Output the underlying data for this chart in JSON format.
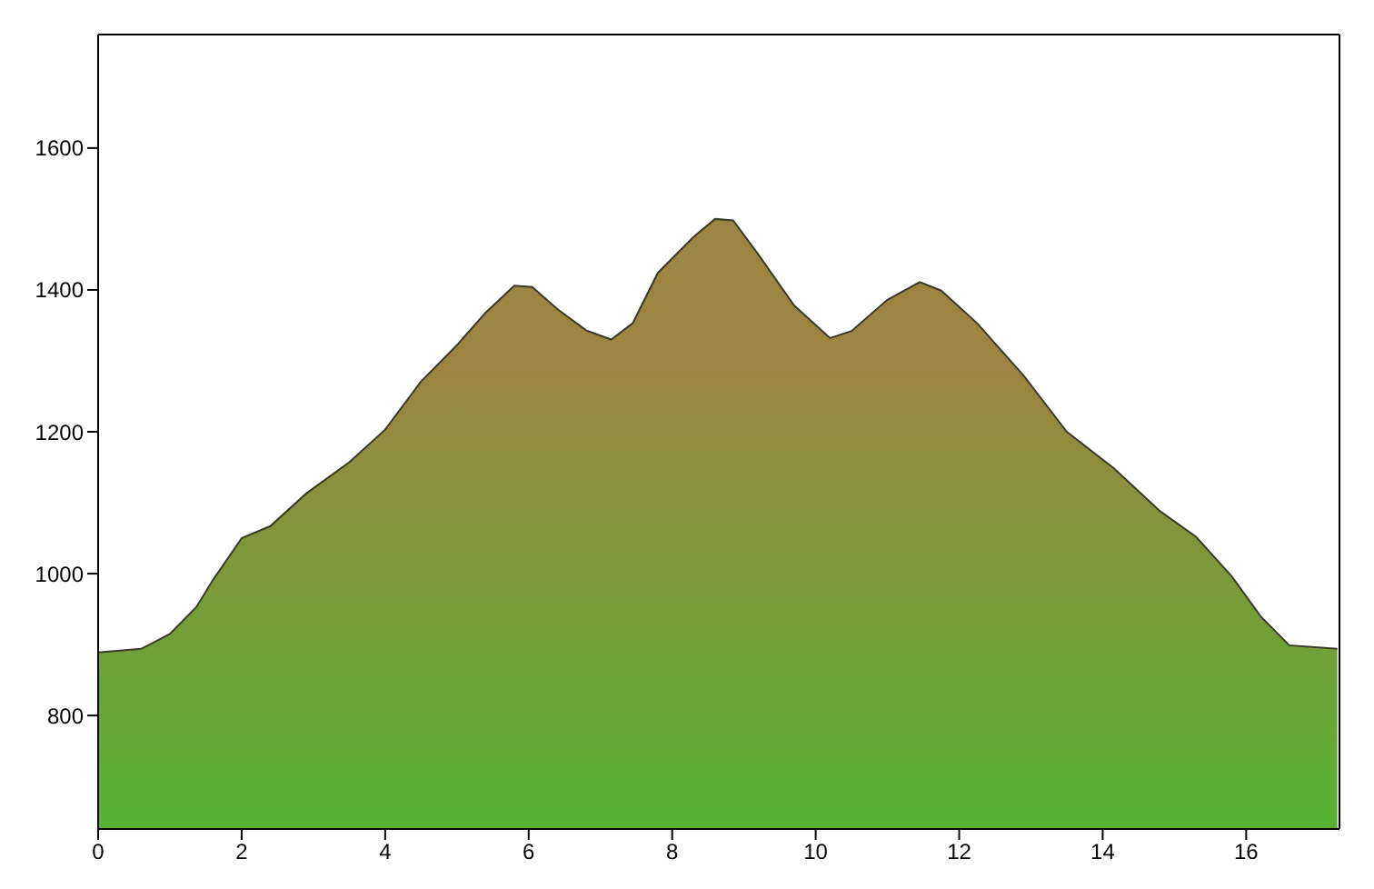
{
  "chart_data": {
    "type": "area",
    "x": [
      0,
      0.6,
      1.0,
      1.37,
      1.6,
      2.0,
      2.4,
      2.9,
      3.5,
      4.0,
      4.5,
      5.0,
      5.4,
      5.8,
      6.05,
      6.4,
      6.8,
      7.15,
      7.45,
      7.8,
      8.3,
      8.6,
      8.85,
      9.2,
      9.7,
      10.2,
      10.5,
      11.0,
      11.45,
      11.75,
      12.25,
      12.9,
      13.5,
      14.15,
      14.8,
      15.3,
      15.8,
      16.2,
      16.6,
      17.27
    ],
    "series": [
      {
        "color": "#56b233",
        "values": [
          889,
          894,
          915,
          953,
          991,
          1050,
          1067,
          1113,
          1157,
          1203,
          1271,
          1322,
          1368,
          1406,
          1404,
          1373,
          1343,
          1330,
          1353,
          1424,
          1475,
          1500,
          1498,
          1450,
          1378,
          1332,
          1342,
          1386,
          1411,
          1399,
          1353,
          1279,
          1200,
          1149,
          1088,
          1052,
          996,
          940,
          899,
          894
        ]
      }
    ],
    "xlim": [
      0,
      17.3
    ],
    "xticks": [
      0,
      2,
      4,
      6,
      8,
      10,
      12,
      14,
      16
    ],
    "ylim": [
      640,
      1760
    ],
    "yticks": [
      800,
      1000,
      1200,
      1400,
      1600
    ],
    "grid": false,
    "legend": false
  }
}
